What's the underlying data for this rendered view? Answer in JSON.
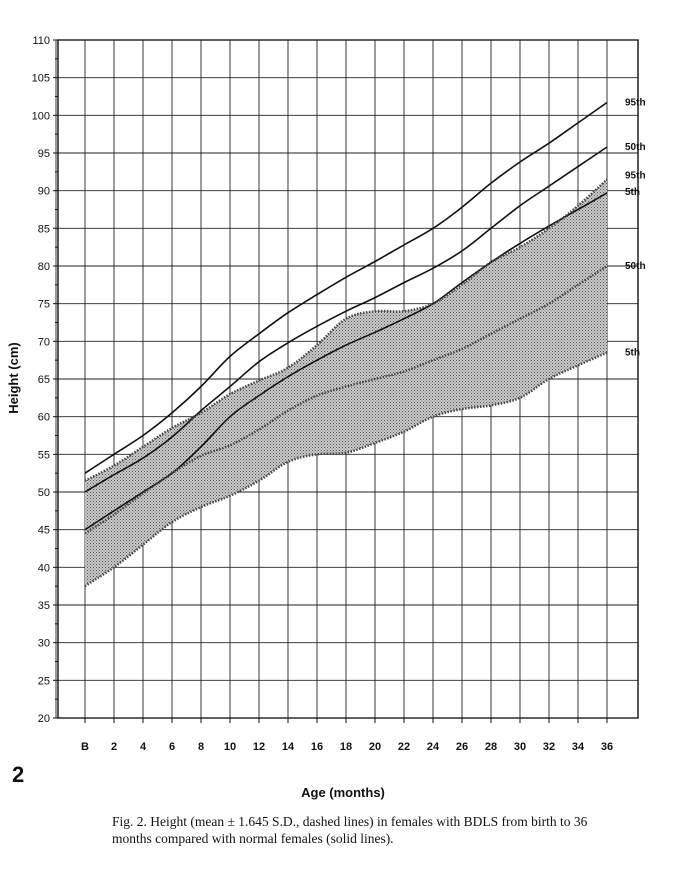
{
  "figure_number": "2",
  "caption": "Fig. 2.   Height (mean ± 1.645 S.D., dashed lines) in females with BDLS from birth to 36 months compared with normal females (solid lines).",
  "chart_data": {
    "type": "line",
    "ylabel": "Height (cm)",
    "xlabel": "Age (months)",
    "ylim": [
      20,
      110
    ],
    "xlim": [
      0,
      36
    ],
    "y_ticks": [
      "20",
      "25",
      "30",
      "35",
      "40",
      "45",
      "50",
      "55",
      "60",
      "65",
      "70",
      "75",
      "80",
      "85",
      "90",
      "95",
      "100",
      "105",
      "110"
    ],
    "x_ticks": [
      "B",
      "2",
      "4",
      "6",
      "8",
      "10",
      "12",
      "14",
      "16",
      "18",
      "20",
      "22",
      "24",
      "26",
      "28",
      "30",
      "32",
      "34",
      "36"
    ],
    "grid": true,
    "series": [
      {
        "name": "95th",
        "style": "solid",
        "group": "normal",
        "x": [
          0,
          2,
          4,
          6,
          8,
          10,
          12,
          14,
          16,
          18,
          20,
          22,
          24,
          26,
          28,
          30,
          32,
          34,
          36
        ],
        "y": [
          52.5,
          55,
          57.5,
          60.5,
          64,
          68,
          71,
          73.8,
          76.2,
          78.5,
          80.6,
          82.8,
          85,
          87.8,
          91,
          93.8,
          96.3,
          99,
          101.7
        ]
      },
      {
        "name": "50th",
        "style": "solid",
        "group": "normal",
        "x": [
          0,
          2,
          4,
          6,
          8,
          10,
          12,
          14,
          16,
          18,
          20,
          22,
          24,
          26,
          28,
          30,
          32,
          34,
          36
        ],
        "y": [
          50,
          52.3,
          54.5,
          57.3,
          60.8,
          64,
          67.3,
          69.8,
          72,
          74,
          75.8,
          77.8,
          79.7,
          82,
          85,
          88,
          90.6,
          93.2,
          95.8
        ]
      },
      {
        "name": "5th",
        "style": "solid",
        "group": "normal",
        "x": [
          0,
          2,
          4,
          6,
          8,
          10,
          12,
          14,
          16,
          18,
          20,
          22,
          24,
          26,
          28,
          30,
          32,
          34,
          36
        ],
        "y": [
          45,
          47.5,
          50,
          52.5,
          56,
          60,
          62.8,
          65.3,
          67.5,
          69.5,
          71.2,
          73,
          75,
          77.8,
          80.5,
          83,
          85.3,
          87.5,
          89.7
        ]
      },
      {
        "name": "95th",
        "style": "dashed",
        "group": "BDLS",
        "x": [
          0,
          2,
          4,
          6,
          8,
          10,
          12,
          14,
          16,
          18,
          20,
          22,
          24,
          26,
          28,
          30,
          32,
          34,
          36
        ],
        "y": [
          51.5,
          53.5,
          56,
          58.5,
          60.5,
          63,
          64.8,
          66.5,
          69.5,
          73,
          74,
          74,
          75,
          77.5,
          80.5,
          82.5,
          85,
          88,
          91.5
        ]
      },
      {
        "name": "50th",
        "style": "dashed",
        "group": "BDLS",
        "x": [
          0,
          2,
          4,
          6,
          8,
          10,
          12,
          14,
          16,
          18,
          20,
          22,
          24,
          26,
          28,
          30,
          32,
          34,
          36
        ],
        "y": [
          44.5,
          47,
          49.8,
          52.5,
          54.8,
          56.2,
          58.3,
          60.8,
          62.8,
          64,
          65,
          66,
          67.5,
          69,
          71,
          73,
          75,
          77.5,
          80
        ]
      },
      {
        "name": "5th",
        "style": "dashed",
        "group": "BDLS",
        "x": [
          0,
          2,
          4,
          6,
          8,
          10,
          12,
          14,
          16,
          18,
          20,
          22,
          24,
          26,
          28,
          30,
          32,
          34,
          36
        ],
        "y": [
          37.5,
          40,
          43,
          46,
          48,
          49.5,
          51.5,
          54,
          55,
          55.2,
          56.5,
          58,
          60,
          61,
          61.5,
          62.5,
          65,
          66.8,
          68.5
        ]
      }
    ],
    "shaded_region": "between BDLS 5th and 95th"
  }
}
